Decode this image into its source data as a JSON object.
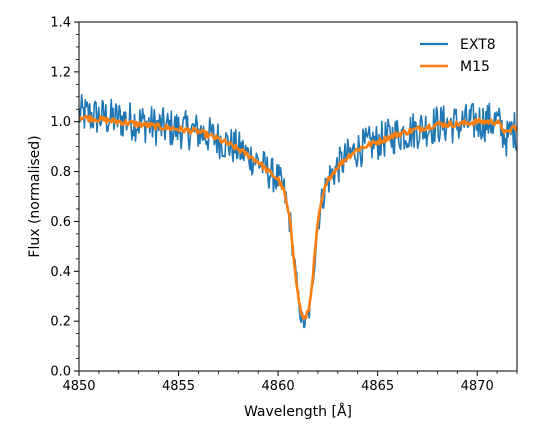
{
  "chart_data": {
    "type": "line",
    "title": "",
    "xlabel": "Wavelength [Å]",
    "ylabel": "Flux (normalised)",
    "xlim": [
      4850,
      4872
    ],
    "ylim": [
      0.0,
      1.4
    ],
    "xticks": [
      4850,
      4855,
      4860,
      4865,
      4870
    ],
    "yticks": [
      0.0,
      0.2,
      0.4,
      0.6,
      0.8,
      1.0,
      1.2,
      1.4
    ],
    "xtick_labels": [
      "4850",
      "4855",
      "4860",
      "4865",
      "4870"
    ],
    "ytick_labels": [
      "0.0",
      "0.2",
      "0.4",
      "0.6",
      "0.8",
      "1.0",
      "1.2",
      "1.4"
    ],
    "grid": false,
    "legend_position": "top-right",
    "series": [
      {
        "name": "EXT8",
        "color": "#1f77b4",
        "noisy": true,
        "x": [
          4850.0,
          4851.0,
          4852.0,
          4853.0,
          4854.0,
          4855.0,
          4856.0,
          4857.0,
          4858.0,
          4859.0,
          4859.5,
          4860.0,
          4860.3,
          4860.6,
          4860.8,
          4861.0,
          4861.2,
          4861.4,
          4861.6,
          4861.8,
          4862.0,
          4862.3,
          4862.6,
          4863.0,
          4863.5,
          4864.0,
          4865.0,
          4866.0,
          4867.0,
          4868.0,
          4869.0,
          4870.0,
          4871.0,
          4871.5,
          4871.8,
          4872.0
        ],
        "y": [
          1.03,
          1.02,
          1.01,
          1.0,
          0.98,
          0.97,
          0.96,
          0.93,
          0.89,
          0.84,
          0.8,
          0.77,
          0.72,
          0.6,
          0.45,
          0.3,
          0.2,
          0.19,
          0.25,
          0.42,
          0.6,
          0.72,
          0.78,
          0.82,
          0.86,
          0.89,
          0.92,
          0.95,
          0.97,
          0.99,
          0.99,
          1.0,
          1.0,
          0.93,
          0.97,
          0.96
        ]
      },
      {
        "name": "M15",
        "color": "#ff7f0e",
        "noisy": false,
        "x": [
          4850.0,
          4851.0,
          4852.0,
          4853.0,
          4854.0,
          4855.0,
          4856.0,
          4857.0,
          4858.0,
          4859.0,
          4859.5,
          4860.0,
          4860.3,
          4860.6,
          4860.8,
          4861.0,
          4861.2,
          4861.4,
          4861.6,
          4861.8,
          4862.0,
          4862.3,
          4862.6,
          4863.0,
          4863.5,
          4864.0,
          4865.0,
          4866.0,
          4867.0,
          4868.0,
          4869.0,
          4870.0,
          4871.0,
          4871.5,
          4871.8,
          4872.0
        ],
        "y": [
          1.02,
          1.01,
          1.0,
          0.99,
          0.98,
          0.97,
          0.96,
          0.93,
          0.89,
          0.84,
          0.8,
          0.77,
          0.72,
          0.6,
          0.45,
          0.3,
          0.22,
          0.21,
          0.27,
          0.43,
          0.6,
          0.72,
          0.78,
          0.82,
          0.86,
          0.89,
          0.92,
          0.95,
          0.97,
          0.99,
          0.99,
          1.0,
          1.0,
          0.95,
          0.98,
          0.97
        ]
      }
    ]
  }
}
